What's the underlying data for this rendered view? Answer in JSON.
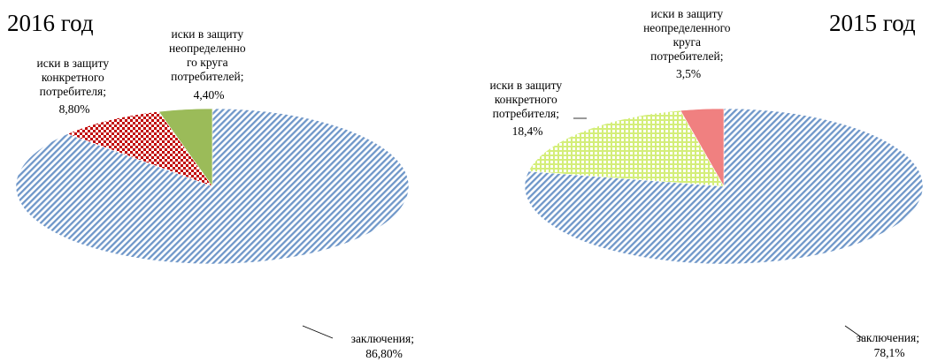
{
  "chart_data": [
    {
      "type": "pie",
      "title": "2016 год",
      "slices": [
        {
          "label": "заключения;",
          "value_text": "86,80%",
          "value": 86.8,
          "color": "#6f97c9",
          "pattern": "diagonal-stripes"
        },
        {
          "label": "иски в защиту конкретного потребителя;",
          "value_text": "8,80%",
          "value": 8.8,
          "color": "#c00000",
          "pattern": "checker"
        },
        {
          "label": "иски в защиту неопределенного круга потребителей;",
          "value_text": "4,40%",
          "value": 4.4,
          "color": "#9bbb59",
          "pattern": "solid"
        }
      ],
      "label_lines": {
        "s0": [
          "заключения;",
          "86,80%"
        ],
        "s1": [
          "иски в защиту",
          "конкретного",
          "потребителя;",
          "8,80%"
        ],
        "s2": [
          "иски в защиту",
          "неопределенно",
          "го круга",
          "потребителей;",
          "4,40%"
        ]
      }
    },
    {
      "type": "pie",
      "title": "2015 год",
      "slices": [
        {
          "label": "заключения;",
          "value_text": "78,1%",
          "value": 78.1,
          "color": "#6f97c9",
          "pattern": "diagonal-stripes"
        },
        {
          "label": "иски в защиту конкретного потребителя;",
          "value_text": "18,4%",
          "value": 18.4,
          "color": "#d4ee7a",
          "pattern": "grid"
        },
        {
          "label": "иски в защиту неопределенного круга потребителей;",
          "value_text": "3,5%",
          "value": 3.5,
          "color": "#f08080",
          "pattern": "solid"
        }
      ],
      "label_lines": {
        "s0": [
          "заключения;",
          "78,1%"
        ],
        "s1": [
          "иски в защиту",
          "конкретного",
          "потребителя;",
          "18,4%"
        ],
        "s2": [
          "иски в защиту",
          "неопределенного",
          "круга",
          "потребителей;",
          "3,5%"
        ]
      }
    }
  ]
}
